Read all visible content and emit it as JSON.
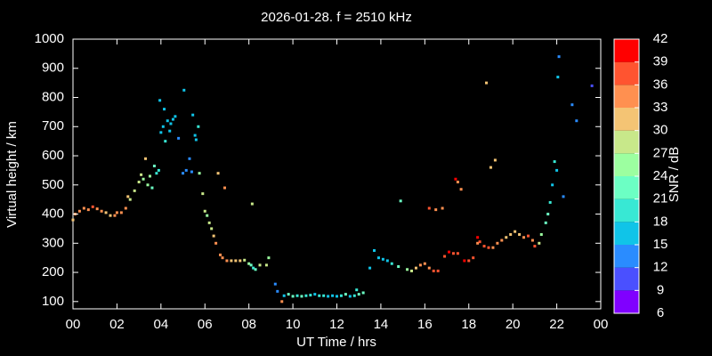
{
  "chart_data": {
    "type": "scatter",
    "title": "2026-01-28. f = 2510 kHz",
    "x_label": "UT Time / hrs",
    "y_label": "Virtual height / km",
    "xlim": [
      0,
      24
    ],
    "xticks": [
      {
        "value": 0,
        "label": "00"
      },
      {
        "value": 2,
        "label": "02"
      },
      {
        "value": 4,
        "label": "04"
      },
      {
        "value": 6,
        "label": "06"
      },
      {
        "value": 8,
        "label": "08"
      },
      10,
      12,
      14,
      16,
      18,
      20,
      22,
      {
        "value": 24,
        "label": "00"
      }
    ],
    "ylim": [
      75,
      1000
    ],
    "yticks": [
      100,
      200,
      300,
      400,
      500,
      600,
      700,
      800,
      900,
      1000
    ],
    "colorbar": {
      "label": "SNR / dB",
      "lim": [
        6,
        42
      ],
      "ticks": [
        6,
        9,
        12,
        15,
        18,
        21,
        24,
        27,
        30,
        33,
        36,
        39,
        42
      ],
      "colors": [
        "#8000ff",
        "#4a50ff",
        "#2a8cff",
        "#10c4e8",
        "#38e8d4",
        "#6cffc4",
        "#9cffa0",
        "#c8e88a",
        "#f4c474",
        "#ff9050",
        "#ff5430",
        "#ff0000"
      ]
    },
    "series": [
      {
        "x": [
          0.0,
          0.1,
          0.3,
          0.5,
          0.7,
          0.9,
          1.1,
          1.3,
          1.5,
          1.7,
          1.9,
          2.0,
          2.2,
          2.4,
          2.5,
          2.6,
          2.8,
          3.0,
          3.1,
          3.2,
          3.3,
          3.4,
          3.5,
          3.6,
          3.7,
          3.8,
          3.9,
          3.95,
          4.0,
          4.1,
          4.15,
          4.2,
          4.3,
          4.4,
          4.45,
          4.55,
          4.65,
          4.8,
          5.0,
          5.05,
          5.15,
          5.3,
          5.4,
          5.45,
          5.55,
          5.6,
          5.7,
          5.75,
          5.9,
          6.0,
          6.1,
          6.2,
          6.3,
          6.4,
          6.5,
          6.6,
          6.7,
          6.8,
          6.9,
          7.0,
          7.2,
          7.4,
          7.6,
          7.8,
          8.0,
          8.1,
          8.15,
          8.2,
          8.3,
          8.5,
          8.8,
          8.9,
          9.2,
          9.3,
          9.5,
          9.6,
          9.8,
          10.0,
          10.2,
          10.4,
          10.6,
          10.8,
          11.0,
          11.2,
          11.4,
          11.6,
          11.8,
          12.0,
          12.2,
          12.4,
          12.6,
          12.8,
          12.9,
          13.0,
          13.2,
          13.5,
          13.7,
          13.9,
          14.1,
          14.3,
          14.5,
          14.8,
          14.9,
          15.2,
          15.4,
          15.6,
          15.8,
          16.0,
          16.2,
          16.2,
          16.4,
          16.5,
          16.6,
          16.8,
          16.9,
          17.1,
          17.3,
          17.4,
          17.5,
          17.5,
          17.65,
          17.8,
          18.0,
          18.2,
          18.4,
          18.4,
          18.5,
          18.7,
          18.8,
          18.9,
          19.0,
          19.1,
          19.2,
          19.3,
          19.5,
          19.7,
          19.9,
          20.1,
          20.3,
          20.5,
          20.7,
          20.9,
          21.0,
          21.2,
          21.3,
          21.5,
          21.6,
          21.7,
          21.8,
          21.9,
          22.0,
          22.05,
          22.1,
          22.3,
          22.7,
          22.9,
          23.6
        ],
        "values": [
          380,
          400,
          410,
          420,
          415,
          425,
          418,
          410,
          405,
          395,
          395,
          405,
          405,
          420,
          460,
          450,
          480,
          510,
          535,
          520,
          590,
          500,
          530,
          490,
          565,
          540,
          550,
          790,
          680,
          700,
          760,
          650,
          720,
          685,
          710,
          725,
          735,
          660,
          540,
          825,
          550,
          590,
          545,
          740,
          670,
          655,
          700,
          540,
          470,
          410,
          395,
          370,
          350,
          325,
          300,
          540,
          260,
          250,
          490,
          240,
          240,
          240,
          240,
          242,
          230,
          225,
          435,
          215,
          210,
          225,
          225,
          250,
          160,
          135,
          100,
          120,
          125,
          118,
          120,
          118,
          120,
          122,
          125,
          120,
          120,
          118,
          120,
          118,
          120,
          125,
          118,
          120,
          140,
          125,
          130,
          215,
          275,
          250,
          245,
          240,
          230,
          220,
          445,
          210,
          205,
          215,
          225,
          230,
          215,
          420,
          205,
          415,
          205,
          420,
          255,
          270,
          265,
          520,
          265,
          510,
          485,
          240,
          240,
          250,
          300,
          320,
          305,
          290,
          850,
          285,
          560,
          285,
          585,
          300,
          310,
          320,
          330,
          340,
          330,
          320,
          325,
          310,
          290,
          300,
          330,
          370,
          400,
          440,
          500,
          580,
          550,
          870,
          940,
          460,
          775,
          720,
          840
        ],
        "snr": [
          30,
          33,
          33,
          33,
          33,
          36,
          33,
          33,
          30,
          30,
          33,
          33,
          33,
          33,
          30,
          27,
          27,
          27,
          27,
          24,
          30,
          24,
          24,
          21,
          21,
          18,
          18,
          15,
          15,
          15,
          15,
          18,
          15,
          15,
          15,
          15,
          15,
          12,
          12,
          15,
          12,
          12,
          12,
          15,
          15,
          15,
          18,
          24,
          27,
          27,
          24,
          27,
          27,
          30,
          33,
          30,
          33,
          33,
          33,
          33,
          30,
          30,
          30,
          27,
          24,
          21,
          27,
          18,
          21,
          27,
          27,
          24,
          12,
          12,
          33,
          15,
          21,
          21,
          18,
          21,
          18,
          18,
          15,
          18,
          18,
          15,
          15,
          15,
          18,
          21,
          15,
          18,
          18,
          21,
          21,
          15,
          15,
          15,
          15,
          15,
          18,
          21,
          21,
          24,
          27,
          30,
          33,
          33,
          33,
          36,
          36,
          33,
          36,
          33,
          36,
          39,
          36,
          39,
          36,
          33,
          33,
          39,
          36,
          36,
          33,
          39,
          36,
          36,
          30,
          36,
          30,
          33,
          30,
          33,
          33,
          30,
          30,
          30,
          30,
          33,
          36,
          33,
          36,
          27,
          24,
          21,
          21,
          18,
          15,
          18,
          15,
          15,
          12,
          12,
          12,
          12,
          9
        ]
      }
    ]
  }
}
